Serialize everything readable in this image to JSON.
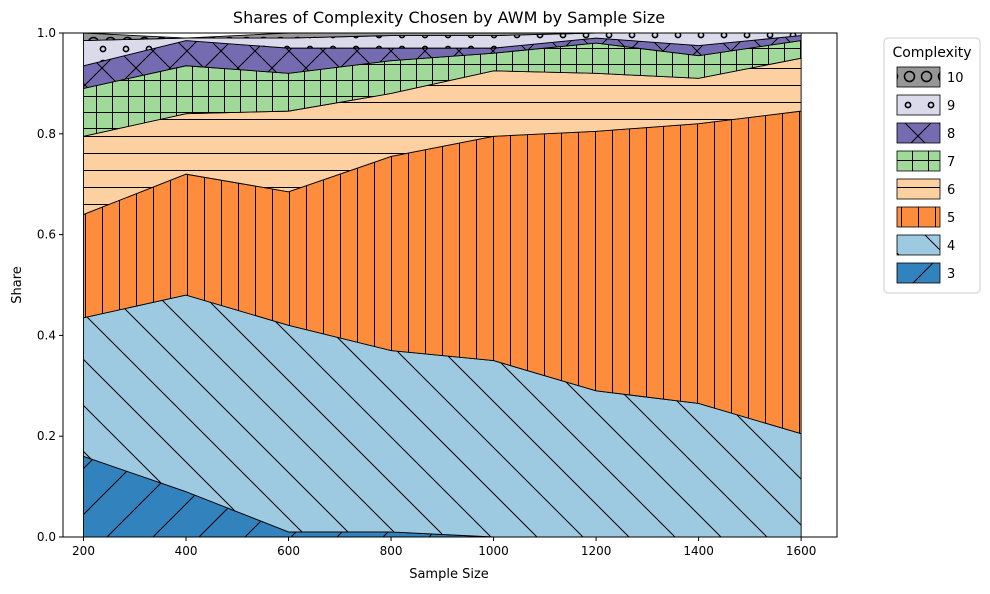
{
  "chart_data": {
    "type": "area",
    "stacked": true,
    "title": "Shares of Complexity Chosen by AWM by Sample Size",
    "xlabel": "Sample Size",
    "ylabel": "Share",
    "xlim": [
      160,
      1670
    ],
    "ylim": [
      0,
      1
    ],
    "x": [
      200,
      400,
      600,
      800,
      1000,
      1200,
      1400,
      1600
    ],
    "x_ticks": [
      "200",
      "400",
      "600",
      "800",
      "1000",
      "1200",
      "1400",
      "1600"
    ],
    "y_ticks": [
      "0.0",
      "0.2",
      "0.4",
      "0.6",
      "0.8",
      "1.0"
    ],
    "legend_title": "Complexity",
    "legend_position": "outside-right",
    "series": [
      {
        "name": "3",
        "color": "#3182bd",
        "hatch": "diag-up",
        "values": [
          0.16,
          0.09,
          0.01,
          0.01,
          0.0,
          0.0,
          0.0,
          0.0
        ]
      },
      {
        "name": "4",
        "color": "#9ecae1",
        "hatch": "diag-down",
        "values": [
          0.275,
          0.39,
          0.41,
          0.36,
          0.35,
          0.29,
          0.265,
          0.205
        ]
      },
      {
        "name": "5",
        "color": "#fd8d3c",
        "hatch": "vertical",
        "values": [
          0.205,
          0.24,
          0.265,
          0.385,
          0.445,
          0.515,
          0.555,
          0.64
        ]
      },
      {
        "name": "6",
        "color": "#fdd0a2",
        "hatch": "horizontal",
        "values": [
          0.155,
          0.12,
          0.16,
          0.125,
          0.13,
          0.115,
          0.09,
          0.105
        ]
      },
      {
        "name": "7",
        "color": "#a1d99b",
        "hatch": "grid",
        "values": [
          0.095,
          0.095,
          0.075,
          0.065,
          0.035,
          0.06,
          0.045,
          0.035
        ]
      },
      {
        "name": "8",
        "color": "#756bb1",
        "hatch": "cross",
        "values": [
          0.045,
          0.05,
          0.05,
          0.025,
          0.01,
          0.01,
          0.02,
          0.01
        ]
      },
      {
        "name": "9",
        "color": "#dadaeb",
        "hatch": "dots",
        "values": [
          0.05,
          0.005,
          0.02,
          0.025,
          0.025,
          0.01,
          0.025,
          0.005
        ]
      },
      {
        "name": "10",
        "color": "#969696",
        "hatch": "circles",
        "values": [
          0.015,
          0.0,
          0.01,
          0.005,
          0.005,
          0.0,
          0.0,
          0.0
        ]
      }
    ]
  }
}
